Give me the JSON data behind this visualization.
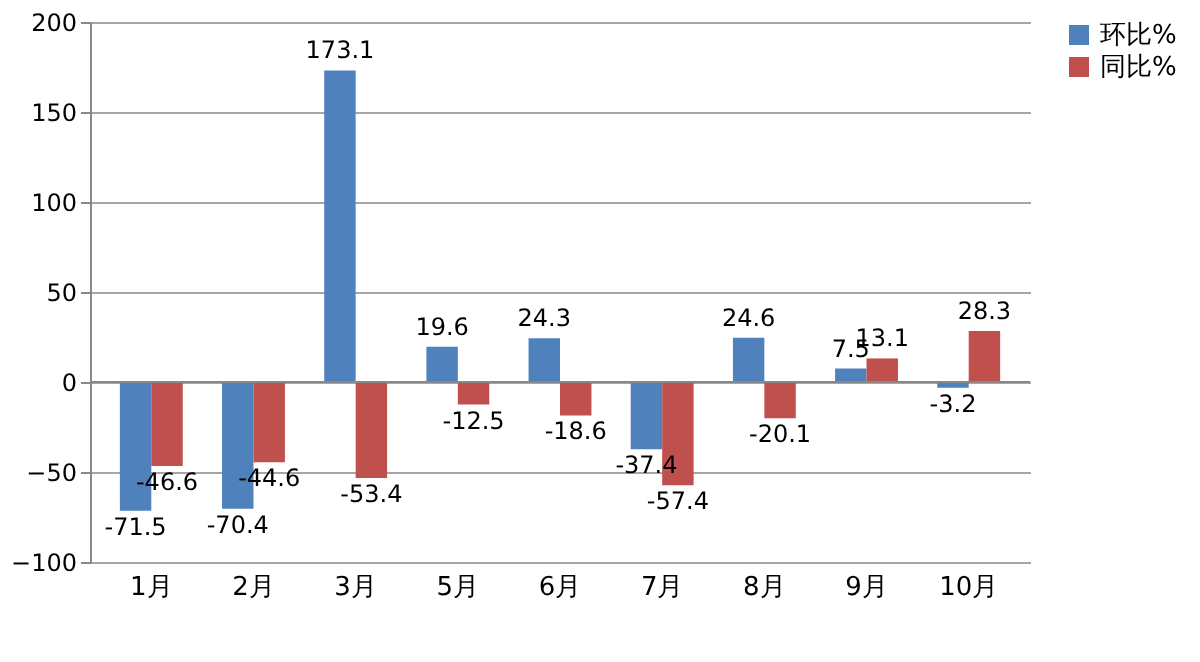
{
  "chart_data": {
    "type": "bar",
    "categories": [
      "1月",
      "2月",
      "3月",
      "5月",
      "6月",
      "7月",
      "8月",
      "9月",
      "10月"
    ],
    "series": [
      {
        "name": "环比%",
        "color": "#4f81bd",
        "values": [
          -71.5,
          -70.4,
          173.1,
          19.6,
          24.3,
          -37.4,
          24.6,
          7.5,
          -3.2
        ]
      },
      {
        "name": "同比%",
        "color": "#c0504d",
        "values": [
          -46.6,
          -44.6,
          -53.4,
          -12.5,
          -18.6,
          -57.4,
          -20.1,
          13.1,
          28.3
        ]
      }
    ],
    "ylim": [
      -100,
      200
    ],
    "yticks": [
      -100,
      -50,
      0,
      50,
      100,
      150,
      200
    ],
    "grid": "y",
    "legend": "right",
    "data_labels": true
  }
}
